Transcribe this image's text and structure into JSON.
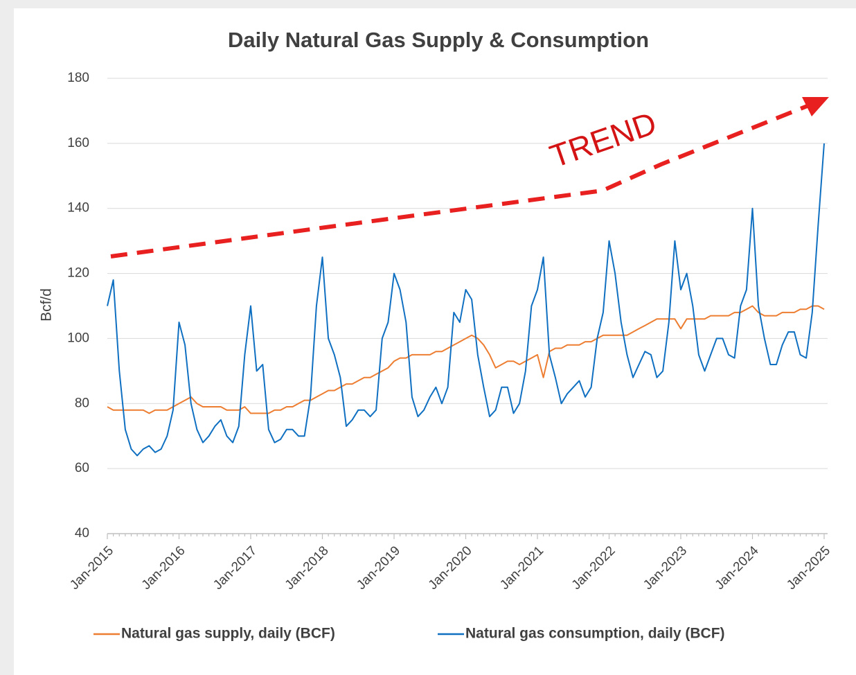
{
  "chart_data": {
    "type": "line",
    "title": "Daily Natural Gas Supply & Consumption",
    "y_label": "Bcf/d",
    "annotation": "TREND",
    "categories": [
      "Jan-2015",
      null,
      null,
      null,
      null,
      null,
      null,
      null,
      null,
      null,
      null,
      null,
      "Jan-2016",
      null,
      null,
      null,
      null,
      null,
      null,
      null,
      null,
      null,
      null,
      null,
      "Jan-2017",
      null,
      null,
      null,
      null,
      null,
      null,
      null,
      null,
      null,
      null,
      null,
      "Jan-2018",
      null,
      null,
      null,
      null,
      null,
      null,
      null,
      null,
      null,
      null,
      null,
      "Jan-2019",
      null,
      null,
      null,
      null,
      null,
      null,
      null,
      null,
      null,
      null,
      null,
      "Jan-2020",
      null,
      null,
      null,
      null,
      null,
      null,
      null,
      null,
      null,
      null,
      null,
      "Jan-2021",
      null,
      null,
      null,
      null,
      null,
      null,
      null,
      null,
      null,
      null,
      null,
      "Jan-2022",
      null,
      null,
      null,
      null,
      null,
      null,
      null,
      null,
      null,
      null,
      null,
      "Jan-2023",
      null,
      null,
      null,
      null,
      null,
      null,
      null,
      null,
      null,
      null,
      null,
      "Jan-2024",
      null,
      null,
      null,
      null,
      null,
      null,
      null,
      null,
      null,
      null,
      null,
      "Jan-2025"
    ],
    "series": [
      {
        "name": "Natural gas supply, daily (BCF)",
        "color": "#ed7d31",
        "values": [
          79,
          78,
          78,
          78,
          78,
          78,
          78,
          77,
          78,
          78,
          78,
          79,
          80,
          81,
          82,
          80,
          79,
          79,
          79,
          79,
          78,
          78,
          78,
          79,
          77,
          77,
          77,
          77,
          78,
          78,
          79,
          79,
          80,
          81,
          81,
          82,
          83,
          84,
          84,
          85,
          86,
          86,
          87,
          88,
          88,
          89,
          90,
          91,
          93,
          94,
          94,
          95,
          95,
          95,
          95,
          96,
          96,
          97,
          98,
          99,
          100,
          101,
          100,
          98,
          95,
          91,
          92,
          93,
          93,
          92,
          93,
          94,
          95,
          88,
          96,
          97,
          97,
          98,
          98,
          98,
          99,
          99,
          100,
          101,
          101,
          101,
          101,
          101,
          102,
          103,
          104,
          105,
          106,
          106,
          106,
          106,
          103,
          106,
          106,
          106,
          106,
          107,
          107,
          107,
          107,
          108,
          108,
          109,
          110,
          108,
          107,
          107,
          107,
          108,
          108,
          108,
          109,
          109,
          110,
          110,
          109
        ]
      },
      {
        "name": "Natural gas consumption, daily (BCF)",
        "color": "#0f6fc1",
        "values": [
          110,
          118,
          90,
          72,
          66,
          64,
          66,
          67,
          65,
          66,
          70,
          78,
          105,
          98,
          80,
          72,
          68,
          70,
          73,
          75,
          70,
          68,
          73,
          95,
          110,
          90,
          92,
          72,
          68,
          69,
          72,
          72,
          70,
          70,
          82,
          110,
          125,
          100,
          95,
          88,
          73,
          75,
          78,
          78,
          76,
          78,
          100,
          105,
          120,
          115,
          105,
          82,
          76,
          78,
          82,
          85,
          80,
          85,
          108,
          105,
          115,
          112,
          95,
          85,
          76,
          78,
          85,
          85,
          77,
          80,
          90,
          110,
          115,
          125,
          95,
          88,
          80,
          83,
          85,
          87,
          82,
          85,
          100,
          108,
          130,
          120,
          105,
          95,
          88,
          92,
          96,
          95,
          88,
          90,
          105,
          130,
          115,
          120,
          110,
          95,
          90,
          95,
          100,
          100,
          95,
          94,
          110,
          115,
          140,
          110,
          100,
          92,
          92,
          98,
          102,
          102,
          95,
          94,
          108,
          135,
          160
        ]
      }
    ],
    "ylim": [
      40,
      180
    ],
    "yticks": [
      40,
      60,
      80,
      100,
      120,
      140,
      160,
      180
    ],
    "grid": true
  }
}
